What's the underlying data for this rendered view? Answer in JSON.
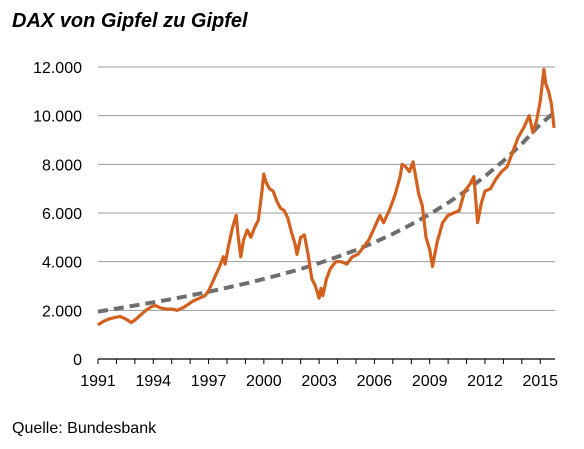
{
  "page_title": "DAX von Gipfel zu Gipfel",
  "source": "Quelle: Bundesbank",
  "colors": {
    "dax_line": "#d2601f",
    "trend_line": "#6e6e6e",
    "grid": "#999999",
    "axis": "#000000"
  },
  "chart_data": {
    "type": "line",
    "title": "DAX von Gipfel zu Gipfel",
    "xlabel": "",
    "ylabel": "",
    "xlim": [
      1991,
      2015.8
    ],
    "ylim": [
      0,
      12000
    ],
    "x_ticks": [
      1991,
      1994,
      1997,
      2000,
      2003,
      2006,
      2009,
      2012,
      2015
    ],
    "x_tick_labels": [
      "1991",
      "1994",
      "1997",
      "2000",
      "2003",
      "2006",
      "2009",
      "2012",
      "2015"
    ],
    "y_ticks": [
      0,
      2000,
      4000,
      6000,
      8000,
      10000,
      12000
    ],
    "y_tick_labels": [
      "0",
      "2.000",
      "4.000",
      "6.000",
      "8.000",
      "10.000",
      "12.000"
    ],
    "grid": "horizontal",
    "legend": "none",
    "series": [
      {
        "style": "solid",
        "x": [
          1991.0,
          1991.3,
          1991.6,
          1991.9,
          1992.2,
          1992.5,
          1992.8,
          1993.0,
          1993.3,
          1993.6,
          1993.9,
          1994.1,
          1994.4,
          1994.7,
          1995.0,
          1995.3,
          1995.6,
          1995.9,
          1996.2,
          1996.5,
          1996.8,
          1997.0,
          1997.3,
          1997.6,
          1997.8,
          1997.9,
          1998.1,
          1998.3,
          1998.5,
          1998.6,
          1998.75,
          1998.9,
          1999.1,
          1999.3,
          1999.5,
          1999.7,
          1999.9,
          2000.0,
          2000.1,
          2000.3,
          2000.5,
          2000.7,
          2000.9,
          2001.1,
          2001.3,
          2001.5,
          2001.7,
          2001.8,
          2002.0,
          2002.2,
          2002.4,
          2002.6,
          2002.8,
          2003.0,
          2003.1,
          2003.2,
          2003.4,
          2003.6,
          2003.9,
          2004.2,
          2004.5,
          2004.8,
          2005.1,
          2005.4,
          2005.7,
          2006.0,
          2006.3,
          2006.5,
          2006.8,
          2007.1,
          2007.4,
          2007.5,
          2007.7,
          2007.9,
          2008.1,
          2008.4,
          2008.6,
          2008.8,
          2009.0,
          2009.15,
          2009.4,
          2009.7,
          2010.0,
          2010.3,
          2010.6,
          2010.9,
          2011.2,
          2011.4,
          2011.6,
          2011.8,
          2012.0,
          2012.3,
          2012.6,
          2012.9,
          2013.2,
          2013.5,
          2013.8,
          2014.1,
          2014.4,
          2014.6,
          2014.8,
          2015.0,
          2015.2,
          2015.3,
          2015.45,
          2015.6,
          2015.75
        ],
        "y": [
          1400,
          1550,
          1650,
          1700,
          1750,
          1650,
          1500,
          1600,
          1800,
          2000,
          2150,
          2200,
          2100,
          2050,
          2050,
          2000,
          2100,
          2250,
          2400,
          2500,
          2600,
          2800,
          3300,
          3800,
          4200,
          3900,
          4700,
          5400,
          5900,
          5100,
          4200,
          4900,
          5300,
          5000,
          5400,
          5700,
          6900,
          7600,
          7300,
          7000,
          6900,
          6500,
          6200,
          6100,
          5800,
          5200,
          4700,
          4300,
          5000,
          5100,
          4300,
          3300,
          3000,
          2500,
          2900,
          2600,
          3300,
          3700,
          4000,
          4000,
          3900,
          4200,
          4300,
          4600,
          4900,
          5400,
          5900,
          5600,
          6100,
          6700,
          7500,
          8000,
          7900,
          7700,
          8100,
          6800,
          6300,
          5000,
          4500,
          3800,
          4800,
          5600,
          5900,
          6000,
          6100,
          6900,
          7200,
          7500,
          5600,
          6400,
          6900,
          7000,
          7400,
          7700,
          7900,
          8500,
          9100,
          9500,
          10000,
          9300,
          9800,
          10600,
          11900,
          11300,
          11000,
          10500,
          9500
        ]
      },
      {
        "style": "dashed",
        "x": [
          1991.0,
          1992.0,
          1993.0,
          1994.0,
          1995.0,
          1996.0,
          1997.0,
          1998.0,
          1999.0,
          2000.0,
          2001.0,
          2002.0,
          2003.0,
          2004.0,
          2005.0,
          2006.0,
          2007.0,
          2008.0,
          2009.0,
          2010.0,
          2011.0,
          2012.0,
          2013.0,
          2014.0,
          2015.0,
          2015.8
        ],
        "y": [
          1950,
          2070,
          2200,
          2330,
          2460,
          2610,
          2760,
          2930,
          3100,
          3290,
          3490,
          3700,
          3940,
          4200,
          4480,
          4790,
          5140,
          5530,
          5950,
          6420,
          6930,
          7510,
          8140,
          8840,
          9650,
          10150
        ]
      }
    ]
  }
}
